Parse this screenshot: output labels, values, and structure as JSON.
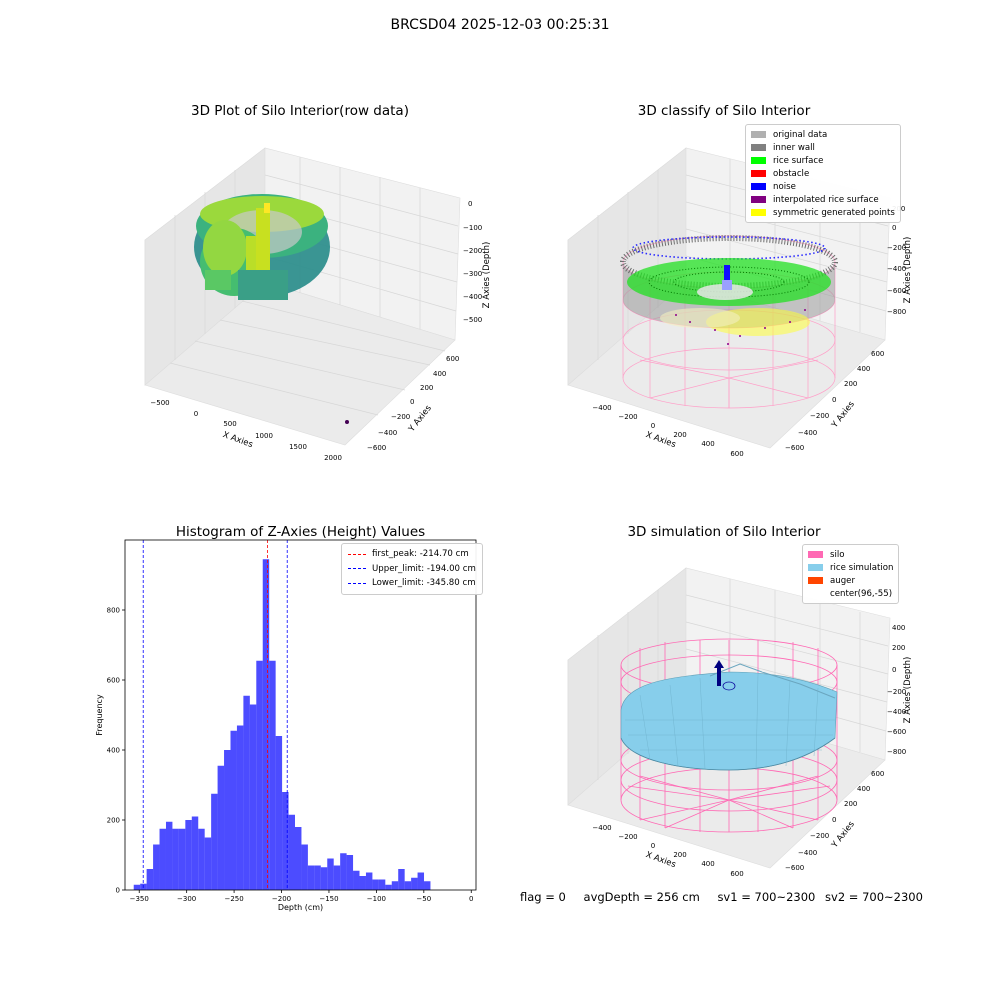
{
  "figure": {
    "title": "BRCSD04 2025-12-03 00:25:31"
  },
  "panel1": {
    "title": "3D Plot of Silo Interior(row data)",
    "xlabel": "X Axies",
    "ylabel": "Y Axies",
    "zlabel": "Z Axies (Depth)",
    "xticks": [
      "−500",
      "0",
      "500",
      "1000",
      "1500",
      "2000"
    ],
    "yticks": [
      "−600",
      "−400",
      "−200",
      "0",
      "200",
      "400",
      "600"
    ],
    "zticks": [
      "0",
      "−100",
      "−200",
      "−300",
      "−400",
      "−500"
    ]
  },
  "panel2": {
    "title": "3D classify of Silo Interior",
    "xlabel": "X Axies",
    "ylabel": "Y Axies",
    "zlabel": "Z Axies (Depth)",
    "xticks": [
      "−400",
      "−200",
      "0",
      "200",
      "400",
      "600"
    ],
    "yticks": [
      "−600",
      "−400",
      "−200",
      "0",
      "200",
      "400",
      "600"
    ],
    "zticks": [
      "200",
      "0",
      "−200",
      "−400",
      "−600",
      "−800"
    ],
    "legend": [
      {
        "label": "original data",
        "color": "#b0b0b0"
      },
      {
        "label": "inner wall",
        "color": "#808080"
      },
      {
        "label": "rice surface",
        "color": "#00ff00"
      },
      {
        "label": "obstacle",
        "color": "#ff0000"
      },
      {
        "label": "noise",
        "color": "#0000ff"
      },
      {
        "label": "interpolated rice surface",
        "color": "#800080"
      },
      {
        "label": "symmetric generated points",
        "color": "#ffff00"
      }
    ]
  },
  "panel4": {
    "title": "3D simulation of Silo Interior",
    "xlabel": "X Axies",
    "ylabel": "Y Axies",
    "zlabel": "Z Axies (Depth)",
    "xticks": [
      "−400",
      "−200",
      "0",
      "200",
      "400",
      "600"
    ],
    "yticks": [
      "−600",
      "−400",
      "−200",
      "0",
      "200",
      "400",
      "600"
    ],
    "zticks": [
      "400",
      "200",
      "0",
      "−200",
      "−400",
      "−600",
      "−800"
    ],
    "legend": [
      {
        "label": "silo",
        "color": "#ff69b4"
      },
      {
        "label": "rice simulation",
        "color": "#87ceeb"
      },
      {
        "label": "auger",
        "color": "#ff4500"
      },
      {
        "label": "center(96,-55)",
        "color": "#ffffff"
      }
    ]
  },
  "chart_data": {
    "type": "bar",
    "title": "Histogram of Z-Axies (Height) Values",
    "xlabel": "Depth (cm)",
    "ylabel": "Frequency",
    "xlim": [
      -365,
      5
    ],
    "ylim": [
      0,
      1000
    ],
    "xticks": [
      -350,
      -300,
      -250,
      -200,
      -150,
      -100,
      -50,
      0
    ],
    "xtick_labels": [
      "−350",
      "−300",
      "−250",
      "−200",
      "−150",
      "−100",
      "−50",
      "0"
    ],
    "yticks": [
      0,
      200,
      400,
      600,
      800
    ],
    "yticks_labels": [
      "0",
      "200",
      "400",
      "600",
      "800"
    ],
    "bin_start": -355.8,
    "bin_width": 6.8,
    "bin_counts": [
      15,
      18,
      60,
      130,
      175,
      195,
      175,
      175,
      200,
      210,
      175,
      150,
      275,
      355,
      400,
      455,
      470,
      555,
      530,
      655,
      945,
      655,
      440,
      280,
      215,
      180,
      130,
      70,
      70,
      65,
      90,
      70,
      105,
      100,
      55,
      40,
      50,
      30,
      30,
      15,
      25,
      60,
      25,
      35,
      50,
      25
    ],
    "bar_color": "#0000ff",
    "vlines": [
      {
        "label": "first_peak: -214.70 cm",
        "value": -214.7,
        "color": "#ff0000"
      },
      {
        "label": "Upper_limit: -194.00 cm",
        "value": -194.0,
        "color": "#0000ff"
      },
      {
        "label": "Lower_limit: -345.80 cm",
        "value": -345.8,
        "color": "#0000ff"
      }
    ],
    "legend_position": "upper right"
  },
  "status": {
    "flag": "flag = 0",
    "avg_depth": "avgDepth = 256 cm",
    "sv1": "sv1 = 700~2300",
    "sv2": "sv2 = 700~2300"
  }
}
